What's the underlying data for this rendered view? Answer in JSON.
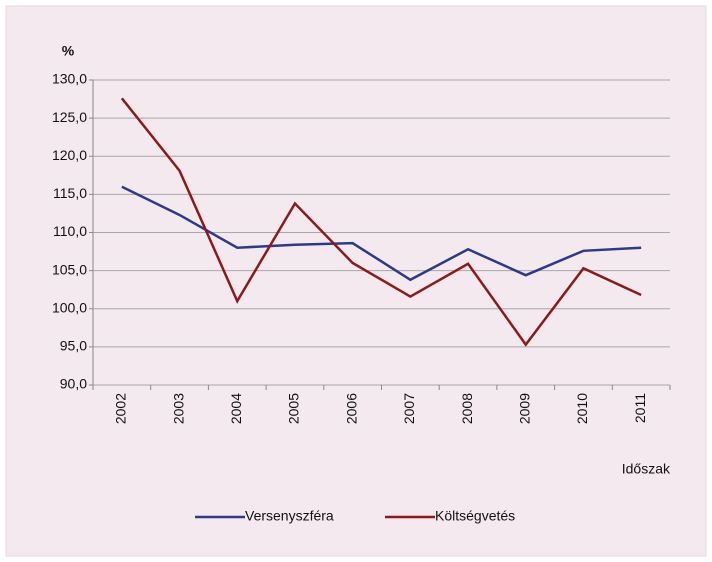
{
  "chart_data": {
    "type": "line",
    "y_label": "%",
    "x_label": "Időszak",
    "categories": [
      "2002",
      "2003",
      "2004",
      "2005",
      "2006",
      "2007",
      "2008",
      "2009",
      "2010",
      "2011"
    ],
    "series": [
      {
        "name": "Versenyszféra",
        "color": "#2e3a87",
        "values": [
          116.0,
          112.3,
          108.0,
          108.4,
          108.6,
          103.8,
          107.8,
          104.4,
          107.6,
          108.0
        ]
      },
      {
        "name": "Költségvetés",
        "color": "#8b1a1a",
        "values": [
          127.6,
          118.1,
          101.0,
          113.8,
          106.0,
          101.6,
          105.9,
          95.3,
          105.3,
          101.8
        ]
      }
    ],
    "ylim": [
      90,
      130
    ],
    "yticks": [
      {
        "value": 90,
        "label": "90,0"
      },
      {
        "value": 95,
        "label": "95,0"
      },
      {
        "value": 100,
        "label": "100,0"
      },
      {
        "value": 105,
        "label": "105,0"
      },
      {
        "value": 110,
        "label": "110,0"
      },
      {
        "value": 115,
        "label": "115,0"
      },
      {
        "value": 120,
        "label": "120,0"
      },
      {
        "value": 125,
        "label": "125,0"
      },
      {
        "value": 130,
        "label": "130,0"
      }
    ],
    "grid": true,
    "legend": "bottom"
  }
}
